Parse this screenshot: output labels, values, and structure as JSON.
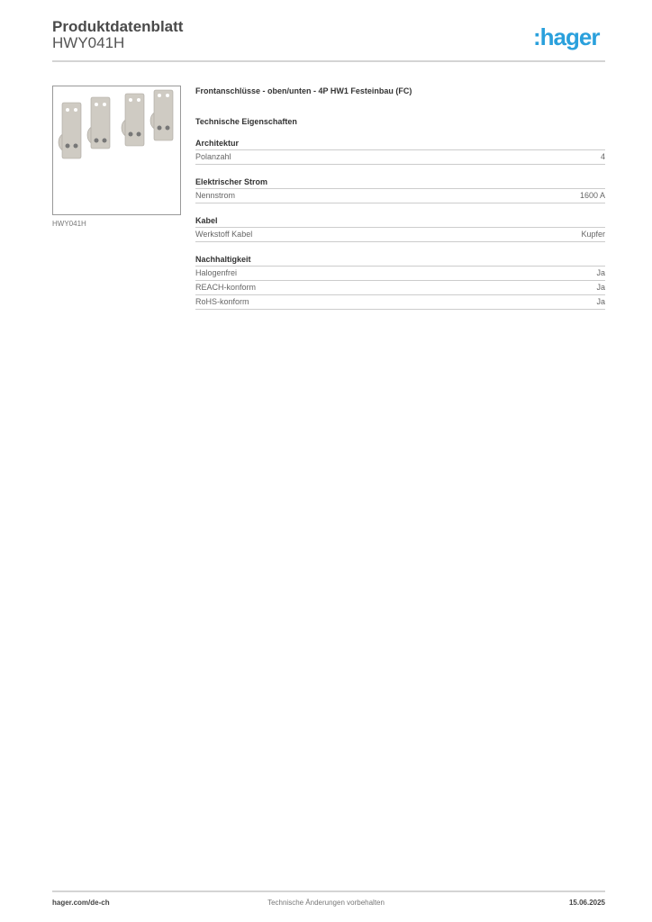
{
  "header": {
    "title": "Produktdatenblatt",
    "code": "HWY041H",
    "logo": ":hager",
    "logo_color": "#2aa0dc"
  },
  "product": {
    "image_caption": "HWY041H",
    "description": "Frontanschlüsse - oben/unten - 4P HW1 Festeinbau (FC)",
    "section_title": "Technische Eigenschaften"
  },
  "groups": [
    {
      "title": "Architektur",
      "rows": [
        {
          "label": "Polanzahl",
          "value": "4"
        }
      ]
    },
    {
      "title": "Elektrischer Strom",
      "rows": [
        {
          "label": "Nennstrom",
          "value": "1600 A"
        }
      ]
    },
    {
      "title": "Kabel",
      "rows": [
        {
          "label": "Werkstoff Kabel",
          "value": "Kupfer"
        }
      ]
    },
    {
      "title": "Nachhaltigkeit",
      "rows": [
        {
          "label": "Halogenfrei",
          "value": "Ja"
        },
        {
          "label": "REACH-konform",
          "value": "Ja"
        },
        {
          "label": "RoHS-konform",
          "value": "Ja"
        }
      ]
    }
  ],
  "footer": {
    "website": "hager.com/de-ch",
    "note": "Technische Änderungen vorbehalten",
    "date": "15.06.2025"
  }
}
